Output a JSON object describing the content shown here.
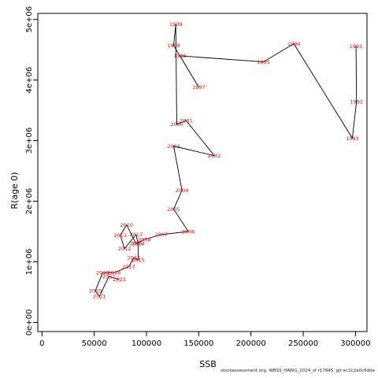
{
  "chart_data": {
    "type": "line",
    "xlabel": "SSB",
    "ylabel": "R(age 0)",
    "xlim": [
      -4000,
      311000
    ],
    "ylim": [
      -150000,
      5100000
    ],
    "x_ticks": [
      {
        "value": 0,
        "label": "0"
      },
      {
        "value": 50000,
        "label": "50000"
      },
      {
        "value": 100000,
        "label": "100000"
      },
      {
        "value": 150000,
        "label": "150000"
      },
      {
        "value": 200000,
        "label": "200000"
      },
      {
        "value": 250000,
        "label": "250000"
      },
      {
        "value": 300000,
        "label": "300000"
      }
    ],
    "y_ticks": [
      {
        "value": 0,
        "label": "0e+00"
      },
      {
        "value": 1000000,
        "label": "1e+06"
      },
      {
        "value": 2000000,
        "label": "2e+06"
      },
      {
        "value": 3000000,
        "label": "3e+06"
      },
      {
        "value": 4000000,
        "label": "4e+06"
      },
      {
        "value": 5000000,
        "label": "5e+06"
      }
    ],
    "line_color": "#000000",
    "label_color": "#ff0000",
    "points": [
      {
        "year": "1991",
        "x": 300500,
        "y": 4560000
      },
      {
        "year": "1992",
        "x": 301000,
        "y": 3640000
      },
      {
        "year": "1993",
        "x": 297000,
        "y": 3040000
      },
      {
        "year": "1994",
        "x": 241000,
        "y": 4600000
      },
      {
        "year": "1995",
        "x": 212000,
        "y": 4300000
      },
      {
        "year": "1996",
        "x": 132000,
        "y": 4400000
      },
      {
        "year": "1997",
        "x": 150000,
        "y": 3880000
      },
      {
        "year": "1998",
        "x": 126000,
        "y": 4570000
      },
      {
        "year": "1999",
        "x": 128000,
        "y": 4920000
      },
      {
        "year": "2000",
        "x": 129000,
        "y": 3270000
      },
      {
        "year": "2001",
        "x": 138000,
        "y": 3330000
      },
      {
        "year": "2002",
        "x": 165000,
        "y": 2750000
      },
      {
        "year": "2003",
        "x": 126000,
        "y": 2910000
      },
      {
        "year": "2004",
        "x": 134000,
        "y": 2180000
      },
      {
        "year": "2005",
        "x": 126000,
        "y": 1870000
      },
      {
        "year": "2006",
        "x": 140000,
        "y": 1500000
      },
      {
        "year": "2007",
        "x": 114000,
        "y": 1450000
      },
      {
        "year": "2008",
        "x": 98000,
        "y": 1370000
      },
      {
        "year": "2009",
        "x": 90000,
        "y": 1300000
      },
      {
        "year": "2010",
        "x": 81000,
        "y": 1610000
      },
      {
        "year": "2011",
        "x": 75000,
        "y": 1440000
      },
      {
        "year": "2012",
        "x": 79000,
        "y": 1220000
      },
      {
        "year": "2013",
        "x": 90000,
        "y": 1450000
      },
      {
        "year": "2014",
        "x": 92000,
        "y": 1300000
      },
      {
        "year": "2015",
        "x": 92000,
        "y": 1030000
      },
      {
        "year": "2016",
        "x": 88000,
        "y": 1070000
      },
      {
        "year": "2017",
        "x": 83000,
        "y": 920000
      },
      {
        "year": "2018",
        "x": 69000,
        "y": 820000
      },
      {
        "year": "2019",
        "x": 58000,
        "y": 820000
      },
      {
        "year": "2020",
        "x": 51000,
        "y": 520000
      },
      {
        "year": "2021",
        "x": 55000,
        "y": 430000
      },
      {
        "year": "2022",
        "x": 64000,
        "y": 760000
      },
      {
        "year": "2023",
        "x": 74000,
        "y": 710000
      }
    ]
  },
  "footer": {
    "source": "stockassessment.org, WBSS_HAWG_2024_sf r17845, git:ec2c2a0c6dde"
  }
}
